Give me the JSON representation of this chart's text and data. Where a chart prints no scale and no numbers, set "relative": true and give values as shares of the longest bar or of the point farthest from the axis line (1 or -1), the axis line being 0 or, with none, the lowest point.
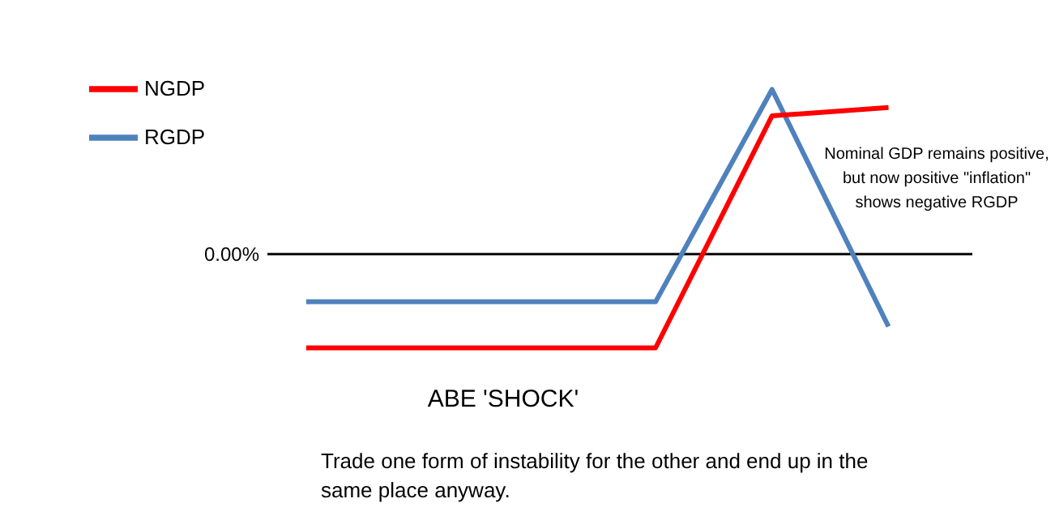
{
  "chart_data": {
    "type": "line",
    "relative": true,
    "xlabel": "ABE 'SHOCK'",
    "categories": [
      null,
      null,
      null,
      null,
      null,
      null
    ],
    "series": [
      {
        "name": "RGDP",
        "color": "#4f81bd",
        "values": [
          -0.29,
          -0.29,
          -0.29,
          -0.29,
          1,
          -0.44
        ]
      },
      {
        "name": "NGDP",
        "color": "#ff0000",
        "values": [
          -0.57,
          -0.57,
          -0.57,
          -0.57,
          0.84,
          0.89
        ]
      }
    ],
    "ref_lines": [
      {
        "axis": "y",
        "value": 0,
        "label": "0.00%",
        "color": "#000000"
      }
    ],
    "annotations": [
      "Nominal GDP remains positive, but now positive \"inflation\" shows negative RGDP",
      "Trade one form of instability for the other and end up in the same place anyway."
    ],
    "legend": "top left",
    "marker": "none",
    "line_style": "solid"
  }
}
